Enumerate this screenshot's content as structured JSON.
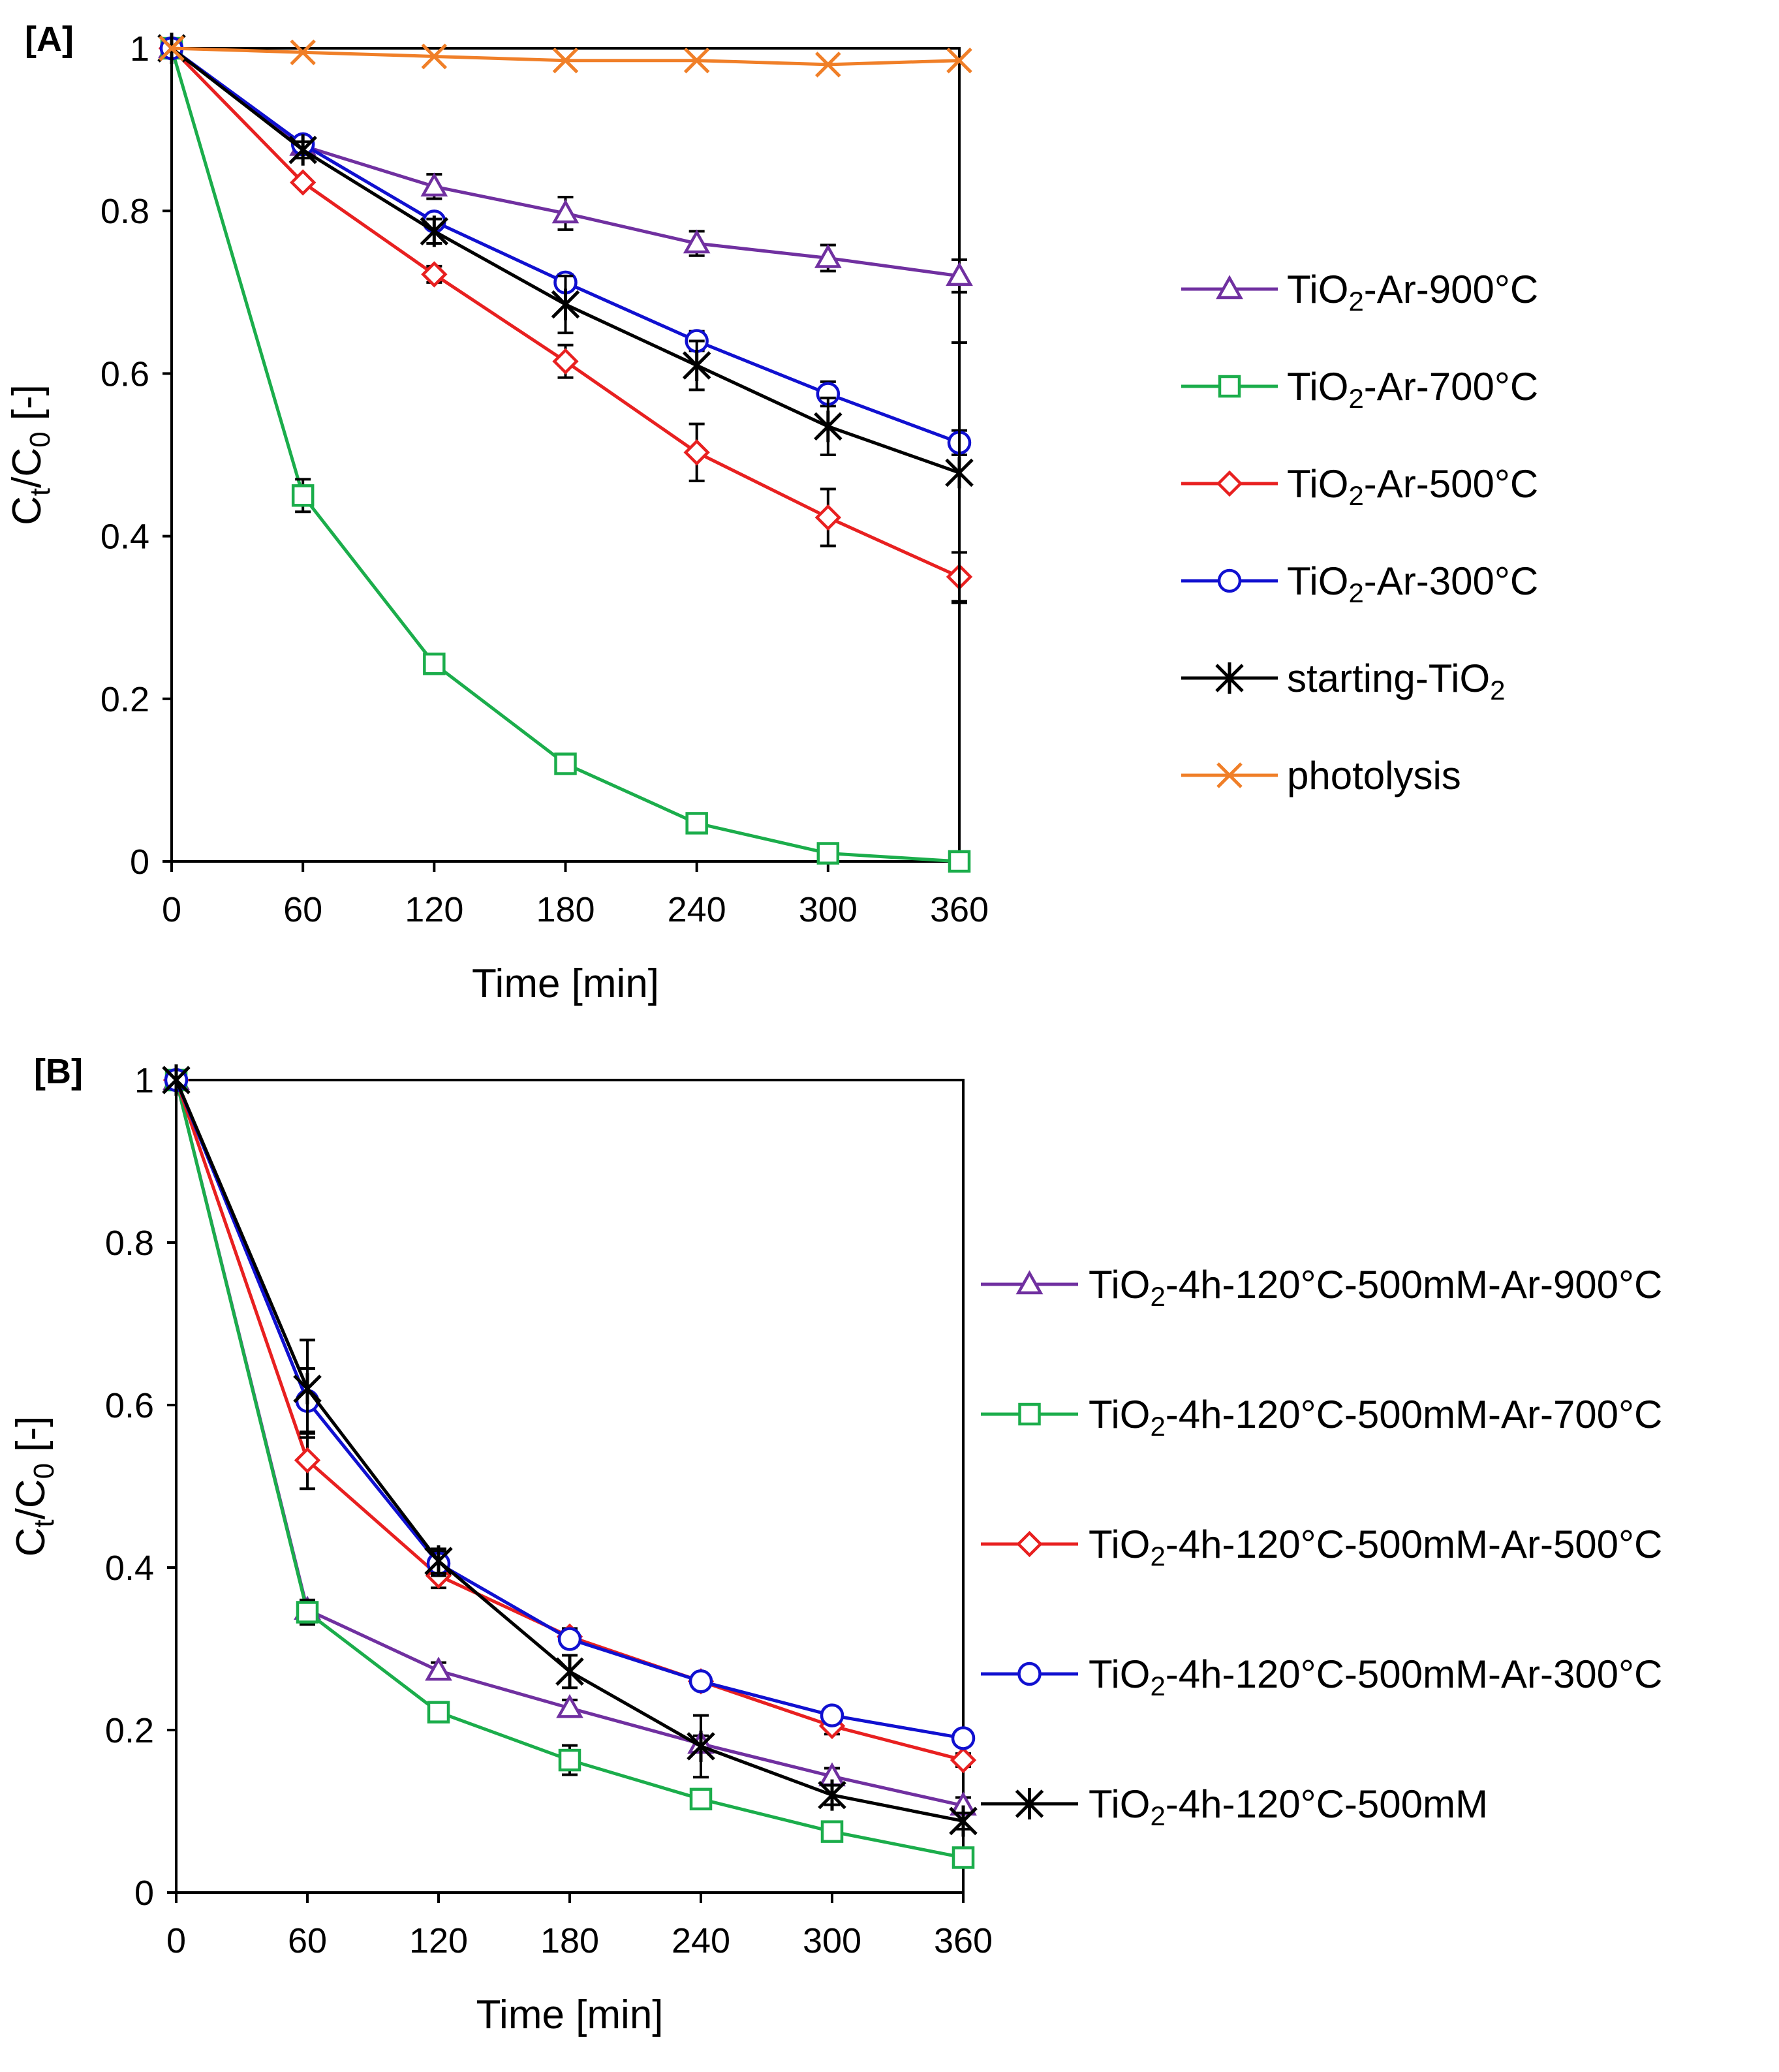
{
  "chart_data": [
    {
      "panel": "[A]",
      "type": "line",
      "xlabel": "Time [min]",
      "ylabel_main": "C",
      "ylabel_sub1": "t",
      "ylabel_mid": "/C",
      "ylabel_sub2": "0",
      "ylabel_end": " [-]",
      "xlim": [
        0,
        360
      ],
      "ylim": [
        0,
        1
      ],
      "x": [
        0,
        60,
        120,
        180,
        240,
        300,
        360
      ],
      "x_tick_labels": [
        "0",
        "60",
        "120",
        "180",
        "240",
        "300",
        "360"
      ],
      "y_ticks": [
        0,
        0.2,
        0.4,
        0.6,
        0.8,
        1
      ],
      "y_tick_labels": [
        "0",
        "0.2",
        "0.4",
        "0.6",
        "0.8",
        "1"
      ],
      "legend_position": "right",
      "series": [
        {
          "name": "TiO2-Ar-900°C",
          "label_main": "TiO",
          "label_sub": "2",
          "label_rest": "-Ar-900°C",
          "color": "#7030A0",
          "marker": "triangle",
          "values": [
            1.0,
            0.88,
            0.83,
            0.797,
            0.76,
            0.742,
            0.72
          ],
          "errors": [
            0,
            0.005,
            0.015,
            0.02,
            0.015,
            0.016,
            0.02
          ]
        },
        {
          "name": "TiO2-Ar-700°C",
          "label_main": "TiO",
          "label_sub": "2",
          "label_rest": "-Ar-700°C",
          "color": "#1BAD4B",
          "marker": "square",
          "values": [
            1.0,
            0.45,
            0.243,
            0.12,
            0.047,
            0.01,
            0.0
          ],
          "errors": [
            0,
            0.02,
            0.01,
            0.008,
            0.005,
            0.004,
            0.003
          ]
        },
        {
          "name": "TiO2-Ar-500°C",
          "label_main": "TiO",
          "label_sub": "2",
          "label_rest": "-Ar-500°C",
          "color": "#E82020",
          "marker": "diamond",
          "values": [
            1.0,
            0.835,
            0.722,
            0.615,
            0.503,
            0.423,
            0.35
          ],
          "errors": [
            0,
            0.005,
            0.01,
            0.02,
            0.035,
            0.035,
            0.03
          ]
        },
        {
          "name": "TiO2-Ar-300°C",
          "label_main": "TiO",
          "label_sub": "2",
          "label_rest": "-Ar-300°C",
          "color": "#1010D0",
          "marker": "circle",
          "values": [
            1.0,
            0.882,
            0.787,
            0.712,
            0.64,
            0.575,
            0.515
          ],
          "errors": [
            0,
            0.005,
            0.005,
            0.01,
            0.012,
            0.015,
            0.015
          ]
        },
        {
          "name": "starting-TiO2",
          "label_main": "starting-TiO",
          "label_sub": "2",
          "label_rest": "",
          "color": "#000000",
          "marker": "asterisk",
          "values": [
            1.0,
            0.875,
            0.775,
            0.685,
            0.61,
            0.535,
            0.478
          ],
          "errors": [
            0,
            0.01,
            0.015,
            0.035,
            0.03,
            0.035,
            0.16
          ]
        },
        {
          "name": "photolysis",
          "label_main": "photolysis",
          "label_sub": "",
          "label_rest": "",
          "color": "#F07F28",
          "marker": "x",
          "values": [
            1.0,
            0.995,
            0.99,
            0.985,
            0.985,
            0.98,
            0.985
          ],
          "errors": [
            0,
            0,
            0,
            0,
            0,
            0,
            0
          ]
        }
      ]
    },
    {
      "panel": "[B]",
      "type": "line",
      "xlabel": "Time [min]",
      "ylabel_main": "C",
      "ylabel_sub1": "t",
      "ylabel_mid": "/C",
      "ylabel_sub2": "0",
      "ylabel_end": " [-]",
      "xlim": [
        0,
        360
      ],
      "ylim": [
        0,
        1
      ],
      "x": [
        0,
        60,
        120,
        180,
        240,
        300,
        360
      ],
      "x_tick_labels": [
        "0",
        "60",
        "120",
        "180",
        "240",
        "300",
        "360"
      ],
      "y_ticks": [
        0,
        0.2,
        0.4,
        0.6,
        0.8,
        1
      ],
      "y_tick_labels": [
        "0",
        "0.2",
        "0.4",
        "0.6",
        "0.8",
        "1"
      ],
      "legend_position": "right",
      "series": [
        {
          "name": "TiO2-4h-120°C-500mM-Ar-900°C",
          "label_main": "TiO",
          "label_sub": "2",
          "label_rest": "-4h-120°C-500mM-Ar-900°C",
          "color": "#7030A0",
          "marker": "triangle",
          "values": [
            1.0,
            0.348,
            0.273,
            0.227,
            0.183,
            0.143,
            0.107
          ],
          "errors": [
            0,
            0.01,
            0.01,
            0.01,
            0.01,
            0.01,
            0.01
          ]
        },
        {
          "name": "TiO2-4h-120°C-500mM-Ar-700°C",
          "label_main": "TiO",
          "label_sub": "2",
          "label_rest": "-4h-120°C-500mM-Ar-700°C",
          "color": "#1BAD4B",
          "marker": "square",
          "values": [
            1.0,
            0.345,
            0.222,
            0.163,
            0.115,
            0.075,
            0.043
          ],
          "errors": [
            0,
            0.015,
            0.012,
            0.018,
            0.012,
            0.01,
            0.008
          ]
        },
        {
          "name": "TiO2-4h-120°C-500mM-Ar-500°C",
          "label_main": "TiO",
          "label_sub": "2",
          "label_rest": "-4h-120°C-500mM-Ar-500°C",
          "color": "#E82020",
          "marker": "diamond",
          "values": [
            1.0,
            0.532,
            0.39,
            0.315,
            0.26,
            0.205,
            0.163
          ],
          "errors": [
            0,
            0.035,
            0.015,
            0.01,
            0.008,
            0.01,
            0.008
          ]
        },
        {
          "name": "TiO2-4h-120°C-500mM-Ar-300°C",
          "label_main": "TiO",
          "label_sub": "2",
          "label_rest": "-4h-120°C-500mM-Ar-300°C",
          "color": "#1010D0",
          "marker": "circle",
          "values": [
            1.0,
            0.605,
            0.405,
            0.312,
            0.26,
            0.218,
            0.19
          ],
          "errors": [
            0,
            0.04,
            0.015,
            0.01,
            0.008,
            0.008,
            0.005
          ]
        },
        {
          "name": "TiO2-4h-120°C-500mM",
          "label_main": "TiO",
          "label_sub": "2",
          "label_rest": "-4h-120°C-500mM",
          "color": "#000000",
          "marker": "asterisk",
          "values": [
            1.0,
            0.62,
            0.408,
            0.272,
            0.18,
            0.12,
            0.088
          ],
          "errors": [
            0,
            0.06,
            0.015,
            0.02,
            0.038,
            0.012,
            0.01
          ]
        }
      ]
    }
  ]
}
